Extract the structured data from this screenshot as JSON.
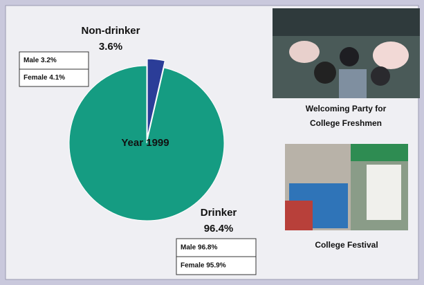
{
  "chart_data": {
    "type": "pie",
    "center_label": "Year 1999",
    "categories": [
      "Non-drinker",
      "Drinker"
    ],
    "values": [
      3.6,
      96.4
    ],
    "value_labels": [
      "3.6%",
      "96.4%"
    ],
    "colors": [
      "#2b3d98",
      "#159c82"
    ],
    "annotations": [
      [
        "Male 3.2%",
        "Female 4.1%"
      ],
      [
        "Male 96.8%",
        "Female 95.9%"
      ]
    ]
  },
  "photos": [
    {
      "caption": [
        "Welcoming Party for",
        "College Freshmen"
      ]
    },
    {
      "caption": [
        "College Festival"
      ]
    }
  ]
}
